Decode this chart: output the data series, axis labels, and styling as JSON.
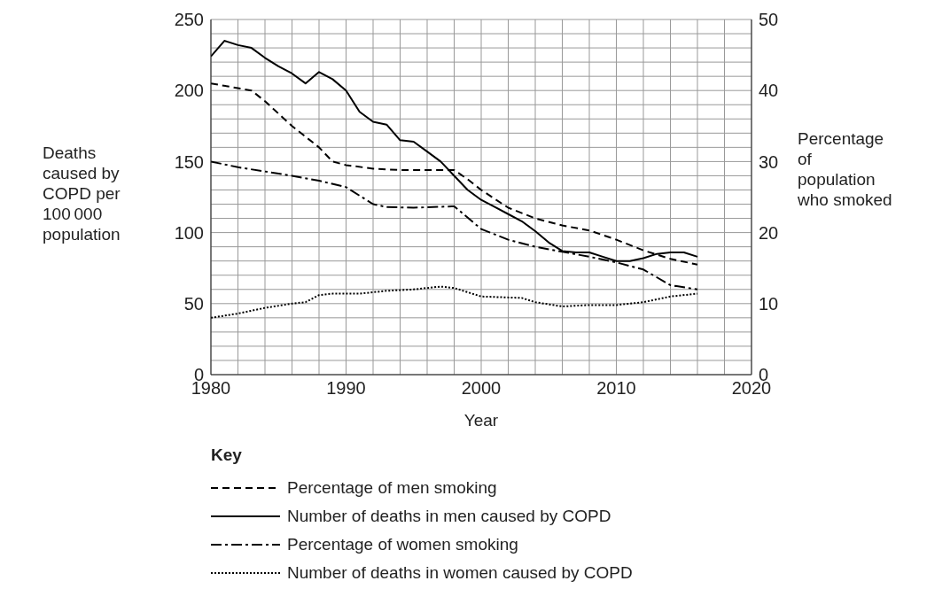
{
  "chart_data": {
    "type": "line",
    "xlabel": "Year",
    "ylabel": "Deaths caused by COPD per 100 000 population",
    "y2label": "Percentage of population who smoked",
    "legend_title": "Key",
    "legend": "bottom",
    "grid": true,
    "xlim": [
      1980,
      2020
    ],
    "xticks": [
      1980,
      {
        "value": 1982,
        "label": null
      },
      {
        "value": 1984,
        "label": null
      },
      {
        "value": 1986,
        "label": null
      },
      {
        "value": 1988,
        "label": null
      },
      1990,
      {
        "value": 1992,
        "label": null
      },
      {
        "value": 1994,
        "label": null
      },
      {
        "value": 1996,
        "label": null
      },
      {
        "value": 1998,
        "label": null
      },
      2000,
      {
        "value": 2002,
        "label": null
      },
      {
        "value": 2004,
        "label": null
      },
      {
        "value": 2006,
        "label": null
      },
      {
        "value": 2008,
        "label": null
      },
      2010,
      {
        "value": 2012,
        "label": null
      },
      {
        "value": 2014,
        "label": null
      },
      {
        "value": 2016,
        "label": null
      },
      {
        "value": 2018,
        "label": null
      },
      2020
    ],
    "ylim": [
      0,
      250
    ],
    "yticks": [
      0,
      {
        "value": 10,
        "label": null
      },
      {
        "value": 20,
        "label": null
      },
      {
        "value": 30,
        "label": null
      },
      {
        "value": 40,
        "label": null
      },
      50,
      {
        "value": 60,
        "label": null
      },
      {
        "value": 70,
        "label": null
      },
      {
        "value": 80,
        "label": null
      },
      {
        "value": 90,
        "label": null
      },
      100,
      {
        "value": 110,
        "label": null
      },
      {
        "value": 120,
        "label": null
      },
      {
        "value": 130,
        "label": null
      },
      {
        "value": 140,
        "label": null
      },
      150,
      {
        "value": 160,
        "label": null
      },
      {
        "value": 170,
        "label": null
      },
      {
        "value": 180,
        "label": null
      },
      {
        "value": 190,
        "label": null
      },
      200,
      {
        "value": 210,
        "label": null
      },
      {
        "value": 220,
        "label": null
      },
      {
        "value": 230,
        "label": null
      },
      {
        "value": 240,
        "label": null
      },
      250
    ],
    "y2lim": [
      0,
      50
    ],
    "y2ticks": [
      0,
      10,
      20,
      30,
      40,
      50
    ],
    "series": [
      {
        "name": "Percentage of men smoking",
        "color": "#000000",
        "axis": "y2",
        "line_style": "dashed",
        "x": [
          1980,
          1983,
          1984,
          1986,
          1988,
          1989,
          1990,
          1992,
          1994,
          1998,
          1999,
          2000,
          2002,
          2004,
          2006,
          2008,
          2010,
          2012,
          2014,
          2016
        ],
        "values": [
          41,
          40,
          38.5,
          35,
          32,
          30,
          29.5,
          29,
          28.8,
          28.8,
          27.5,
          26,
          23.5,
          22,
          21,
          20.3,
          19,
          17.5,
          16.3,
          15.5
        ]
      },
      {
        "name": "Number of deaths in men caused by COPD",
        "color": "#000000",
        "line_style": "solid",
        "x": [
          1980,
          1981,
          1982,
          1983,
          1984,
          1985,
          1986,
          1987,
          1988,
          1989,
          1990,
          1991,
          1992,
          1993,
          1994,
          1995,
          1996,
          1997,
          1998,
          1999,
          2000,
          2001,
          2002,
          2003,
          2004,
          2005,
          2006,
          2007,
          2008,
          2009,
          2010,
          2011,
          2012,
          2013,
          2014,
          2015,
          2016
        ],
        "values": [
          224,
          235,
          232,
          230,
          223,
          217,
          212,
          205,
          213,
          208,
          200,
          185,
          178,
          176,
          165,
          164,
          157,
          150,
          140,
          130,
          123,
          118,
          113,
          108,
          101,
          93,
          87,
          86,
          86,
          83,
          80,
          80,
          82,
          85,
          86,
          86,
          83
        ]
      },
      {
        "name": "Percentage of women smoking",
        "color": "#000000",
        "axis": "y2",
        "line_style": "dashdot",
        "x": [
          1980,
          1982,
          1984,
          1986,
          1988,
          1990,
          1992,
          1993,
          1995,
          1998,
          2000,
          2002,
          2004,
          2006,
          2008,
          2010,
          2012,
          2014,
          2016
        ],
        "values": [
          30,
          29.2,
          28.6,
          28,
          27.3,
          26.4,
          24,
          23.6,
          23.5,
          23.7,
          20.5,
          19,
          18,
          17.3,
          16.6,
          15.8,
          14.8,
          12.6,
          12
        ]
      },
      {
        "name": "Number of deaths in women caused by COPD",
        "color": "#000000",
        "line_style": "dotted",
        "x": [
          1980,
          1982,
          1984,
          1986,
          1987,
          1988,
          1989,
          1991,
          1993,
          1995,
          1997,
          1998,
          2000,
          2003,
          2004,
          2006,
          2008,
          2010,
          2012,
          2014,
          2016
        ],
        "values": [
          40,
          43,
          47,
          50,
          51,
          56,
          57,
          57,
          59,
          60,
          62,
          61,
          55,
          54,
          51,
          48,
          49,
          49,
          51,
          55,
          57
        ]
      }
    ]
  }
}
